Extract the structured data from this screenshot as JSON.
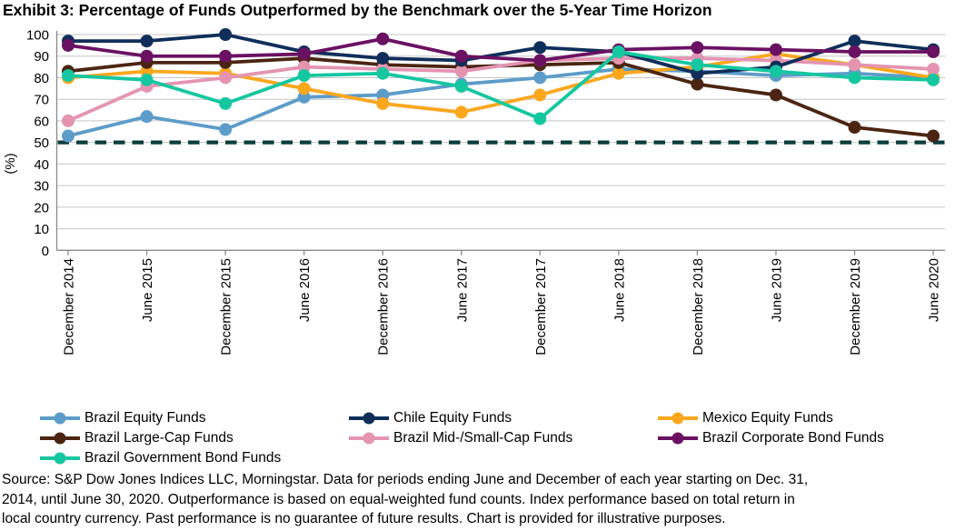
{
  "title": "Exhibit 3: Percentage of Funds Outperformed by the Benchmark over the 5-Year Time Horizon",
  "chart_data": {
    "type": "line",
    "title": "Exhibit 3: Percentage of Funds Outperformed by the Benchmark over the 5-Year Time Horizon",
    "xlabel": "",
    "ylabel": "(%)",
    "ylim": [
      0,
      100
    ],
    "ytick_step": 10,
    "grid": true,
    "legend_position": "bottom",
    "benchmark_line": {
      "value": 50,
      "style": "dashed",
      "color": "#0C3D3C"
    },
    "categories": [
      "December 2014",
      "June 2015",
      "December 2015",
      "June 2016",
      "December 2016",
      "June 2017",
      "December 2017",
      "June 2018",
      "December 2018",
      "June 2019",
      "December 2019",
      "June 2020"
    ],
    "series": [
      {
        "name": "Brazil Equity Funds",
        "color": "#5C9CC9",
        "values": [
          53,
          62,
          56,
          71,
          72,
          77,
          80,
          84,
          83,
          81,
          82,
          80
        ]
      },
      {
        "name": "Mexico Equity Funds",
        "color": "#FAA71E",
        "values": [
          80,
          83,
          82,
          75,
          68,
          64,
          72,
          82,
          85,
          91,
          86,
          80
        ]
      },
      {
        "name": "Brazil Large-Cap Funds",
        "color": "#4B2512",
        "values": [
          83,
          87,
          87,
          89,
          86,
          85,
          86,
          87,
          77,
          72,
          57,
          53
        ]
      },
      {
        "name": "Brazil Mid-/Small-Cap Funds",
        "color": "#E494B1",
        "values": [
          60,
          76,
          80,
          85,
          84,
          83,
          88,
          89,
          89,
          88,
          86,
          84
        ]
      },
      {
        "name": "Chile Equity Funds",
        "color": "#102E5A",
        "values": [
          97,
          97,
          100,
          92,
          89,
          88,
          94,
          92,
          82,
          85,
          97,
          93
        ]
      },
      {
        "name": "Brazil Corporate Bond Funds",
        "color": "#6B1162",
        "values": [
          95,
          90,
          90,
          91,
          98,
          90,
          88,
          93,
          94,
          93,
          92,
          92
        ]
      },
      {
        "name": "Brazil Government Bond Funds",
        "color": "#15C7A0",
        "values": [
          81,
          79,
          68,
          81,
          82,
          76,
          61,
          92,
          86,
          83,
          80,
          79
        ]
      }
    ],
    "legend_order": [
      0,
      4,
      1,
      2,
      3,
      5,
      6
    ]
  },
  "source": {
    "line1": "Source: S&P Dow Jones Indices LLC, Morningstar. Data for periods ending June and December of each year starting on Dec. 31,",
    "line2": "2014, until June 30, 2020. Outperformance is based on equal-weighted fund counts. Index performance based on total return in",
    "line3": "local country currency. Past performance is no guarantee of future results. Chart is provided for illustrative purposes."
  },
  "colors": {
    "gridline": "#C6C6C6",
    "axis": "#898989",
    "background": "#FFFFFF"
  }
}
